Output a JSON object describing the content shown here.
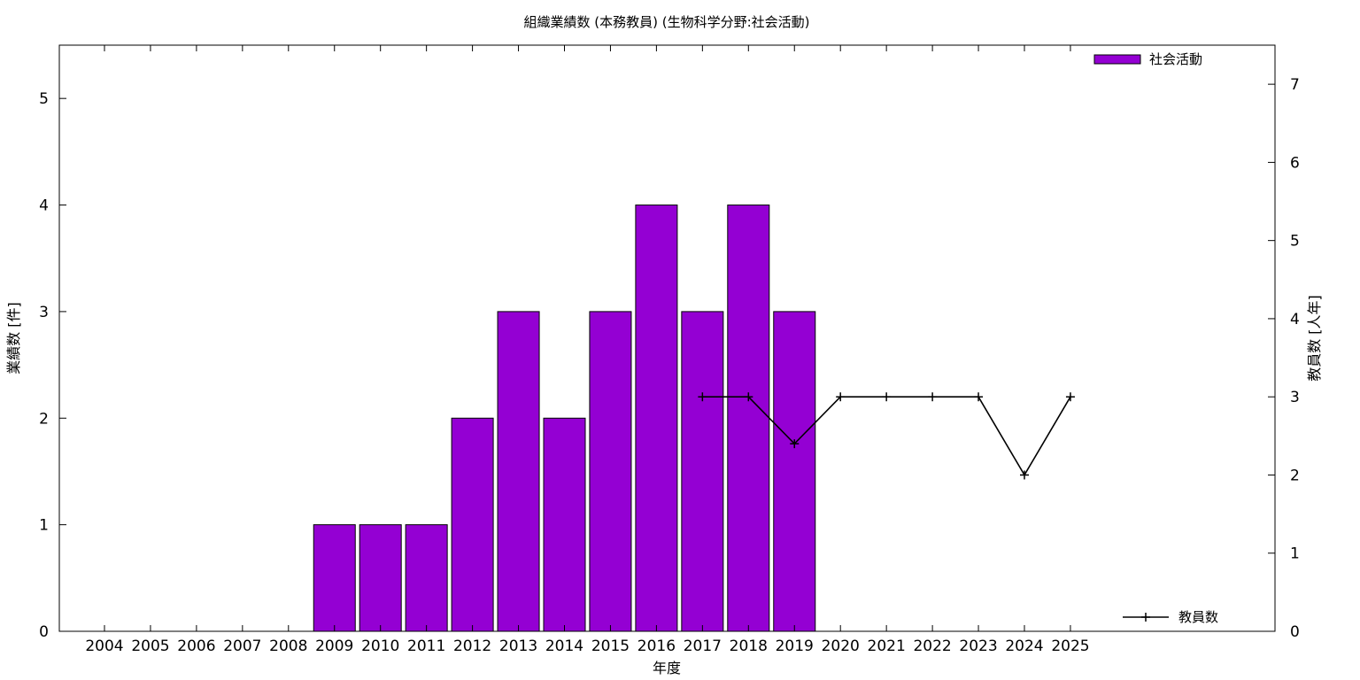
{
  "chart_data": {
    "type": "bar",
    "title": "組織業績数 (本務教員) (生物科学分野:社会活動)",
    "xlabel": "年度",
    "ylabel_left": "業績数 [件]",
    "ylabel_right": "教員数 [人年]",
    "categories": [
      "2004",
      "2005",
      "2006",
      "2007",
      "2008",
      "2009",
      "2010",
      "2011",
      "2012",
      "2013",
      "2014",
      "2015",
      "2016",
      "2017",
      "2018",
      "2019",
      "2020",
      "2021",
      "2022",
      "2023",
      "2024",
      "2025"
    ],
    "ylim_left": [
      0,
      5.5
    ],
    "yticks_left": [
      0,
      1,
      2,
      3,
      4,
      5
    ],
    "ylim_right": [
      0,
      7.5
    ],
    "yticks_right": [
      0,
      1,
      2,
      3,
      4,
      5,
      6,
      7
    ],
    "series": [
      {
        "name": "社会活動",
        "kind": "bar",
        "axis": "left",
        "color": "#9400d3",
        "values": [
          0,
          0,
          0,
          0,
          0,
          1,
          1,
          1,
          2,
          3,
          2,
          3,
          4,
          3,
          4,
          3,
          0,
          0,
          0,
          0,
          0,
          0
        ]
      },
      {
        "name": "教員数",
        "kind": "line",
        "axis": "right",
        "color": "#000000",
        "x": [
          "2017",
          "2018",
          "2019",
          "2020",
          "2021",
          "2022",
          "2023",
          "2024",
          "2025"
        ],
        "values": [
          3,
          3,
          2.4,
          3,
          3,
          3,
          3,
          2,
          3
        ]
      }
    ],
    "legend_bar_position": "top-right",
    "legend_line_position": "bottom-right",
    "grid": false
  }
}
